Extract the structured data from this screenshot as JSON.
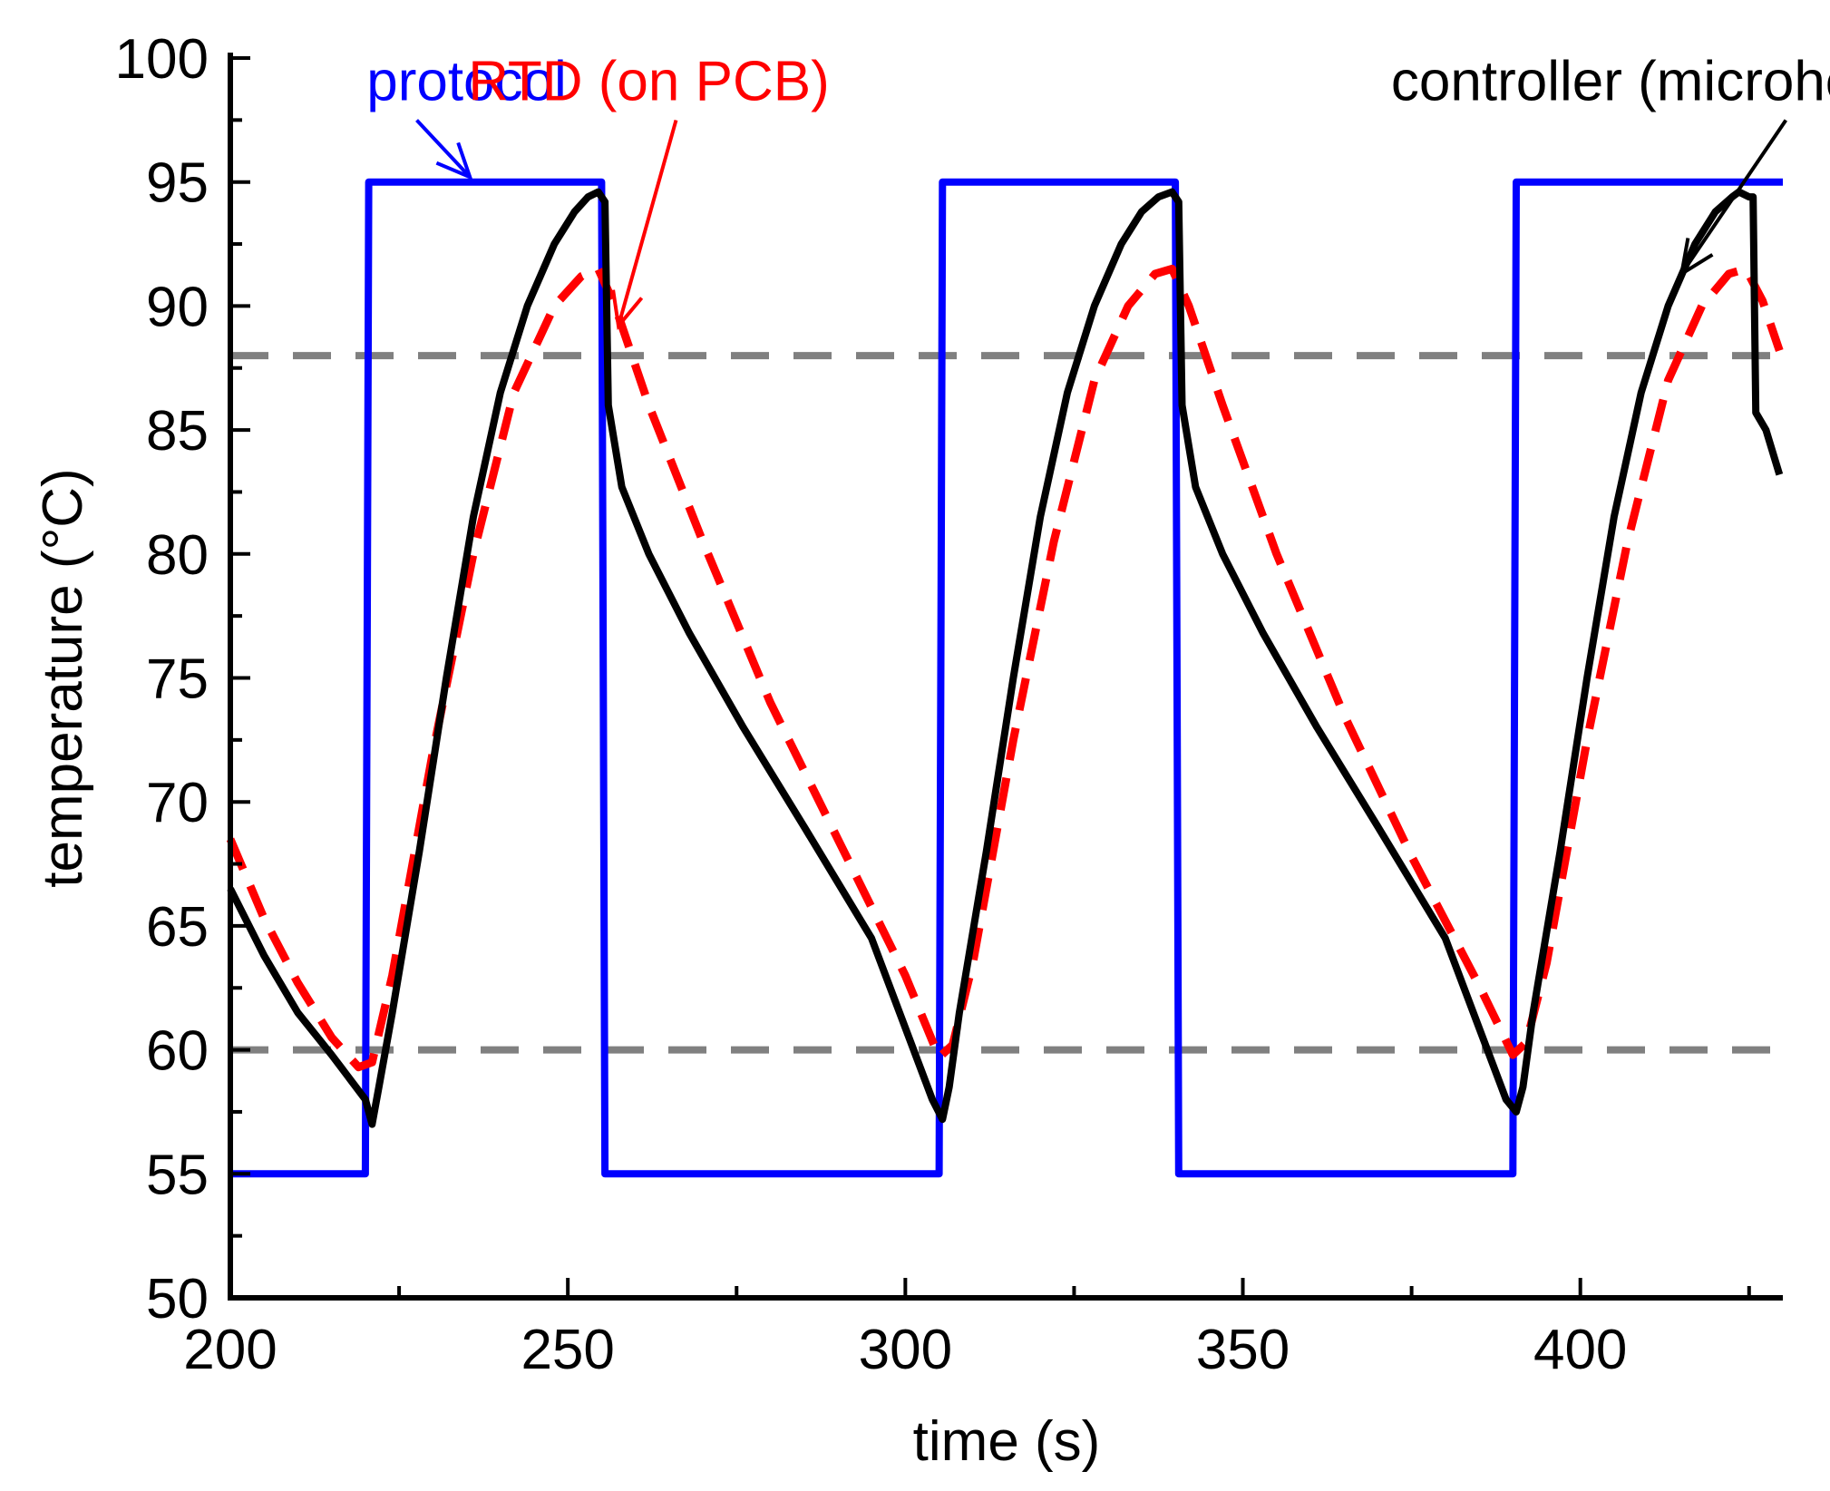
{
  "chart_data": {
    "type": "line",
    "title": "",
    "xlabel": "time (s)",
    "ylabel": "temperature (°C)",
    "xlim": [
      200,
      430
    ],
    "ylim": [
      50,
      100
    ],
    "x_ticks": [
      200,
      250,
      300,
      350,
      400
    ],
    "y_ticks": [
      50,
      55,
      60,
      65,
      70,
      75,
      80,
      85,
      90,
      95,
      100
    ],
    "x_tick_labels": [
      "200",
      "250",
      "300",
      "350",
      "400"
    ],
    "y_tick_labels": [
      "50",
      "55",
      "60",
      "65",
      "70",
      "75",
      "80",
      "85",
      "90",
      "95",
      "100"
    ],
    "grid": false,
    "reference_lines": [
      {
        "y": 88,
        "color": "#808080",
        "style": "dashed"
      },
      {
        "y": 60,
        "color": "#808080",
        "style": "dashed"
      }
    ],
    "series": [
      {
        "name": "protocol",
        "label": "protocol",
        "color": "#0000ff",
        "style": "solid",
        "label_pointer": {
          "label_at": [
            235,
            98.3
          ],
          "tip_at": [
            235.5,
            95.2
          ]
        },
        "x": [
          200,
          220,
          220.5,
          255,
          255.5,
          305,
          305.5,
          340,
          340.5,
          390,
          390.5,
          430
        ],
        "y": [
          55,
          55,
          95,
          95,
          55,
          55,
          95,
          95,
          55,
          55,
          95,
          95
        ]
      },
      {
        "name": "RTD (on PCB)",
        "label": "RTD (on PCB)",
        "color": "#ff0000",
        "style": "dashed",
        "label_pointer": {
          "label_at": [
            262,
            98.3
          ],
          "tip_at": [
            257.5,
            89.2
          ]
        },
        "x": [
          200,
          205,
          210,
          215,
          219,
          221,
          224,
          230,
          236,
          242,
          248,
          252,
          254.5,
          257,
          262,
          270,
          280,
          290,
          300,
          305,
          307,
          310,
          316,
          322,
          328,
          333,
          337,
          339.5,
          342,
          347,
          355,
          365,
          375,
          385,
          390,
          392,
          395,
          401,
          407,
          413,
          418,
          422,
          424.5,
          427,
          429.5
        ],
        "y": [
          68.5,
          65.3,
          62.7,
          60.5,
          59.3,
          59.5,
          63,
          72,
          80,
          86.5,
          90,
          91.2,
          91.5,
          90,
          86,
          80.5,
          74,
          68.5,
          63,
          59.7,
          60.2,
          63.5,
          72.5,
          80.5,
          87,
          90,
          91.3,
          91.5,
          90,
          86,
          80,
          73.5,
          67.8,
          62.6,
          59.8,
          60.3,
          63.5,
          72.5,
          80.5,
          87,
          90,
          91.3,
          91.5,
          90.2,
          88.2
        ]
      },
      {
        "name": "controller (microheater)",
        "label": "controller (microheater)",
        "color": "#000000",
        "style": "solid",
        "label_pointer": {
          "label_at": [
            415,
            98.3
          ],
          "tip_at": [
            415,
            91.3
          ]
        },
        "x": [
          200,
          205,
          210,
          215,
          220,
          221,
          222,
          224,
          228,
          232,
          236,
          240,
          244,
          248,
          251,
          253,
          254.5,
          255.5,
          256,
          258,
          262,
          268,
          276,
          285,
          295,
          304,
          305.5,
          306.5,
          308,
          312,
          316,
          320,
          324,
          328,
          332,
          335,
          337.5,
          339.5,
          340.5,
          341,
          343,
          347,
          353,
          361,
          370,
          380,
          389,
          390.5,
          391.5,
          393,
          397,
          401,
          405,
          409,
          413,
          417,
          420,
          422.5,
          423.5,
          425,
          425.6,
          426,
          427.5,
          429.5
        ],
        "y": [
          66.5,
          63.8,
          61.5,
          59.8,
          58,
          57,
          58.5,
          61.5,
          68,
          75,
          81.5,
          86.5,
          90,
          92.5,
          93.8,
          94.4,
          94.6,
          94.2,
          86,
          82.7,
          80,
          76.8,
          73,
          69,
          64.5,
          58,
          57.2,
          58.5,
          61.5,
          68,
          75,
          81.5,
          86.5,
          90,
          92.5,
          93.8,
          94.4,
          94.6,
          94.2,
          86,
          82.7,
          80,
          76.8,
          73,
          69,
          64.5,
          58,
          57.5,
          58.5,
          61.5,
          68,
          75,
          81.5,
          86.5,
          90,
          92.5,
          93.8,
          94.4,
          94.6,
          94.4,
          94.4,
          85.7,
          85,
          83.2
        ]
      }
    ]
  }
}
